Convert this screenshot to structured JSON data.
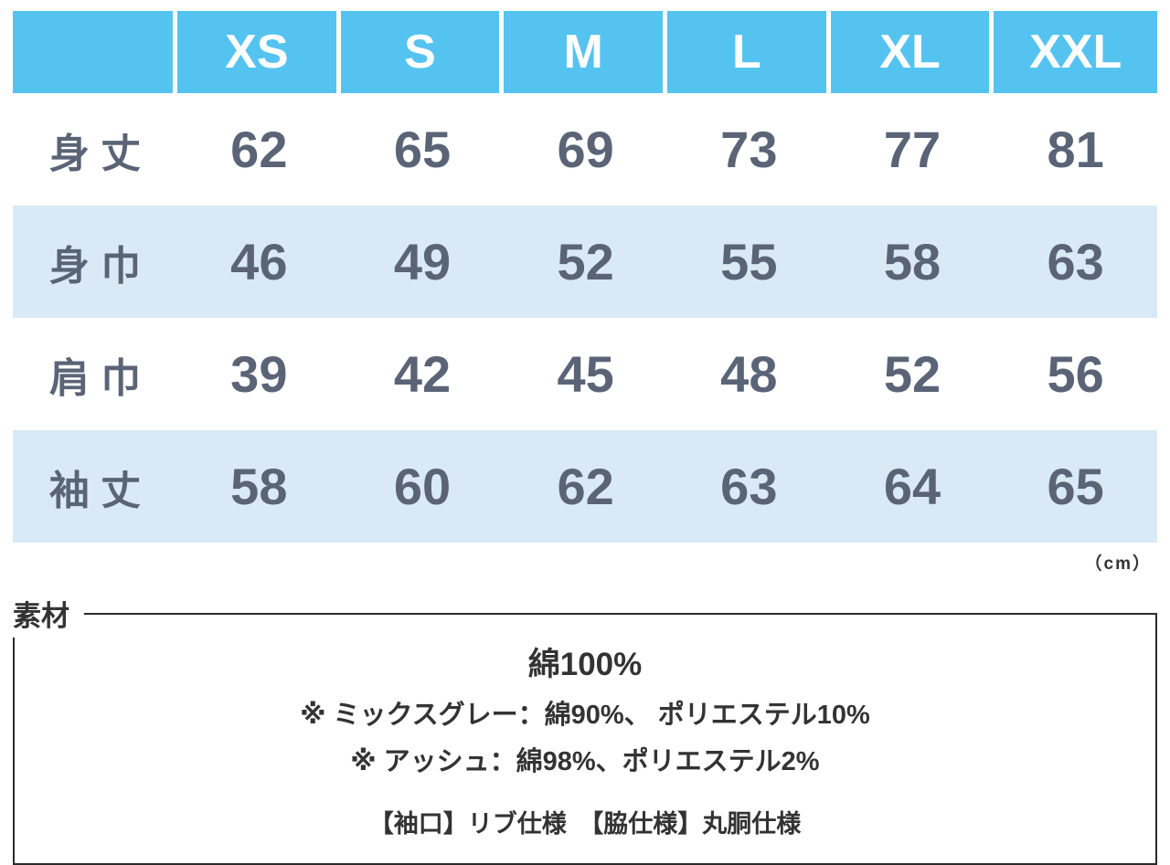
{
  "chart_data": {
    "type": "table",
    "sizes": [
      "XS",
      "S",
      "M",
      "L",
      "XL",
      "XXL"
    ],
    "rows": [
      {
        "label": "身丈",
        "values": [
          62,
          65,
          69,
          73,
          77,
          81
        ]
      },
      {
        "label": "身巾",
        "values": [
          46,
          49,
          52,
          55,
          58,
          63
        ]
      },
      {
        "label": "肩巾",
        "values": [
          39,
          42,
          45,
          48,
          52,
          56
        ]
      },
      {
        "label": "袖丈",
        "values": [
          58,
          60,
          62,
          63,
          64,
          65
        ]
      }
    ],
    "unit_label": "（cm）"
  },
  "material": {
    "label": "素材",
    "main": "綿100%",
    "notes": [
      "※ ミックスグレー：綿90%、 ポリエステル10%",
      "※ アッシュ：綿98%、ポリエステル2%"
    ],
    "spec": "【袖口】リブ仕様　【脇仕様】丸胴仕様"
  },
  "colors": {
    "header_blue": "#55c3f0",
    "row_alt_blue": "#d9eaf6",
    "table_text": "#5a6476",
    "body_text": "#333333"
  }
}
